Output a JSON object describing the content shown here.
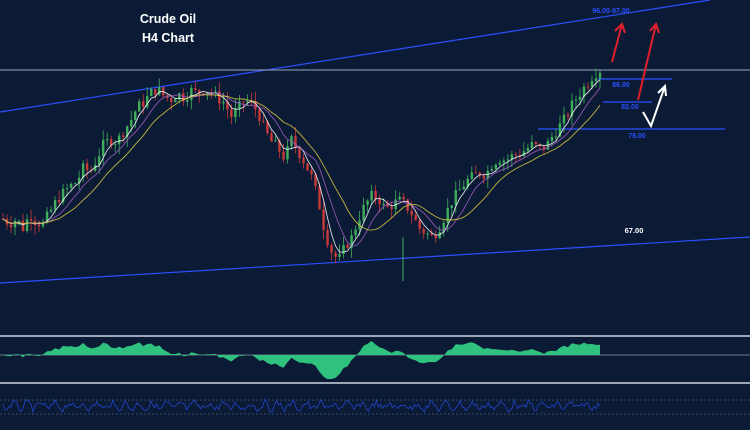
{
  "chart_data": {
    "type": "candlestick",
    "title": "Crude Oil",
    "subtitle": "H4 Chart",
    "price_labels": [
      {
        "id": "target_top",
        "text": "96.00-97.00",
        "color": "#2b4fff"
      },
      {
        "id": "res_1",
        "text": "86.00",
        "color": "#2b4fff"
      },
      {
        "id": "support_82",
        "text": "82.00",
        "color": "#2b4fff"
      },
      {
        "id": "support_78",
        "text": "78.00",
        "color": "#2b4fff"
      },
      {
        "id": "support_67",
        "text": "67.00",
        "color": "#ffffff"
      }
    ],
    "price_series": [
      72,
      71.5,
      72,
      71,
      72.5,
      71.6,
      71.5,
      72.7,
      74,
      74.8,
      75.5,
      76,
      77.5,
      77,
      78.5,
      80,
      80.5,
      80.3,
      81.5,
      82.5,
      84,
      84.5,
      85.5,
      86,
      85.2,
      84.8,
      85.5,
      85,
      85.8,
      85.5,
      86,
      85.6,
      85,
      84.5,
      83,
      83.8,
      84.8,
      84.4,
      83.5,
      81.5,
      80.3,
      79.6,
      78.5,
      80.5,
      79.3,
      78,
      76.5,
      74,
      70.5,
      68.5,
      67.5,
      69,
      70,
      72,
      73.5,
      74.5,
      74.2,
      73,
      73.5,
      74,
      73.5,
      72.5,
      71,
      70.5,
      70,
      71,
      72.5,
      74,
      75,
      76,
      76.5,
      77,
      76.8,
      78,
      78.5,
      78.3,
      78.8,
      79,
      79.5,
      80,
      79.5,
      79.8,
      81,
      82,
      83,
      84.5,
      85.5,
      86.5,
      87.5,
      88
    ],
    "candle_colors": {
      "up": "#3fae5a",
      "down": "#c83a3a"
    },
    "moving_averages": [
      {
        "color": "#ffffff"
      },
      {
        "color": "#a85ec8"
      },
      {
        "color": "#e0d040"
      }
    ],
    "trendlines": [
      {
        "color": "#2b4fff"
      },
      {
        "color": "#2b4fff"
      }
    ],
    "arrows": [
      {
        "color": "#e0202a"
      },
      {
        "color": "#e0202a"
      },
      {
        "color": "#ffffff"
      }
    ],
    "oscillator": {
      "type": "histogram",
      "color": "#2ec27e"
    },
    "lower_indicator": {
      "type": "line",
      "color": "#2244cc"
    }
  }
}
